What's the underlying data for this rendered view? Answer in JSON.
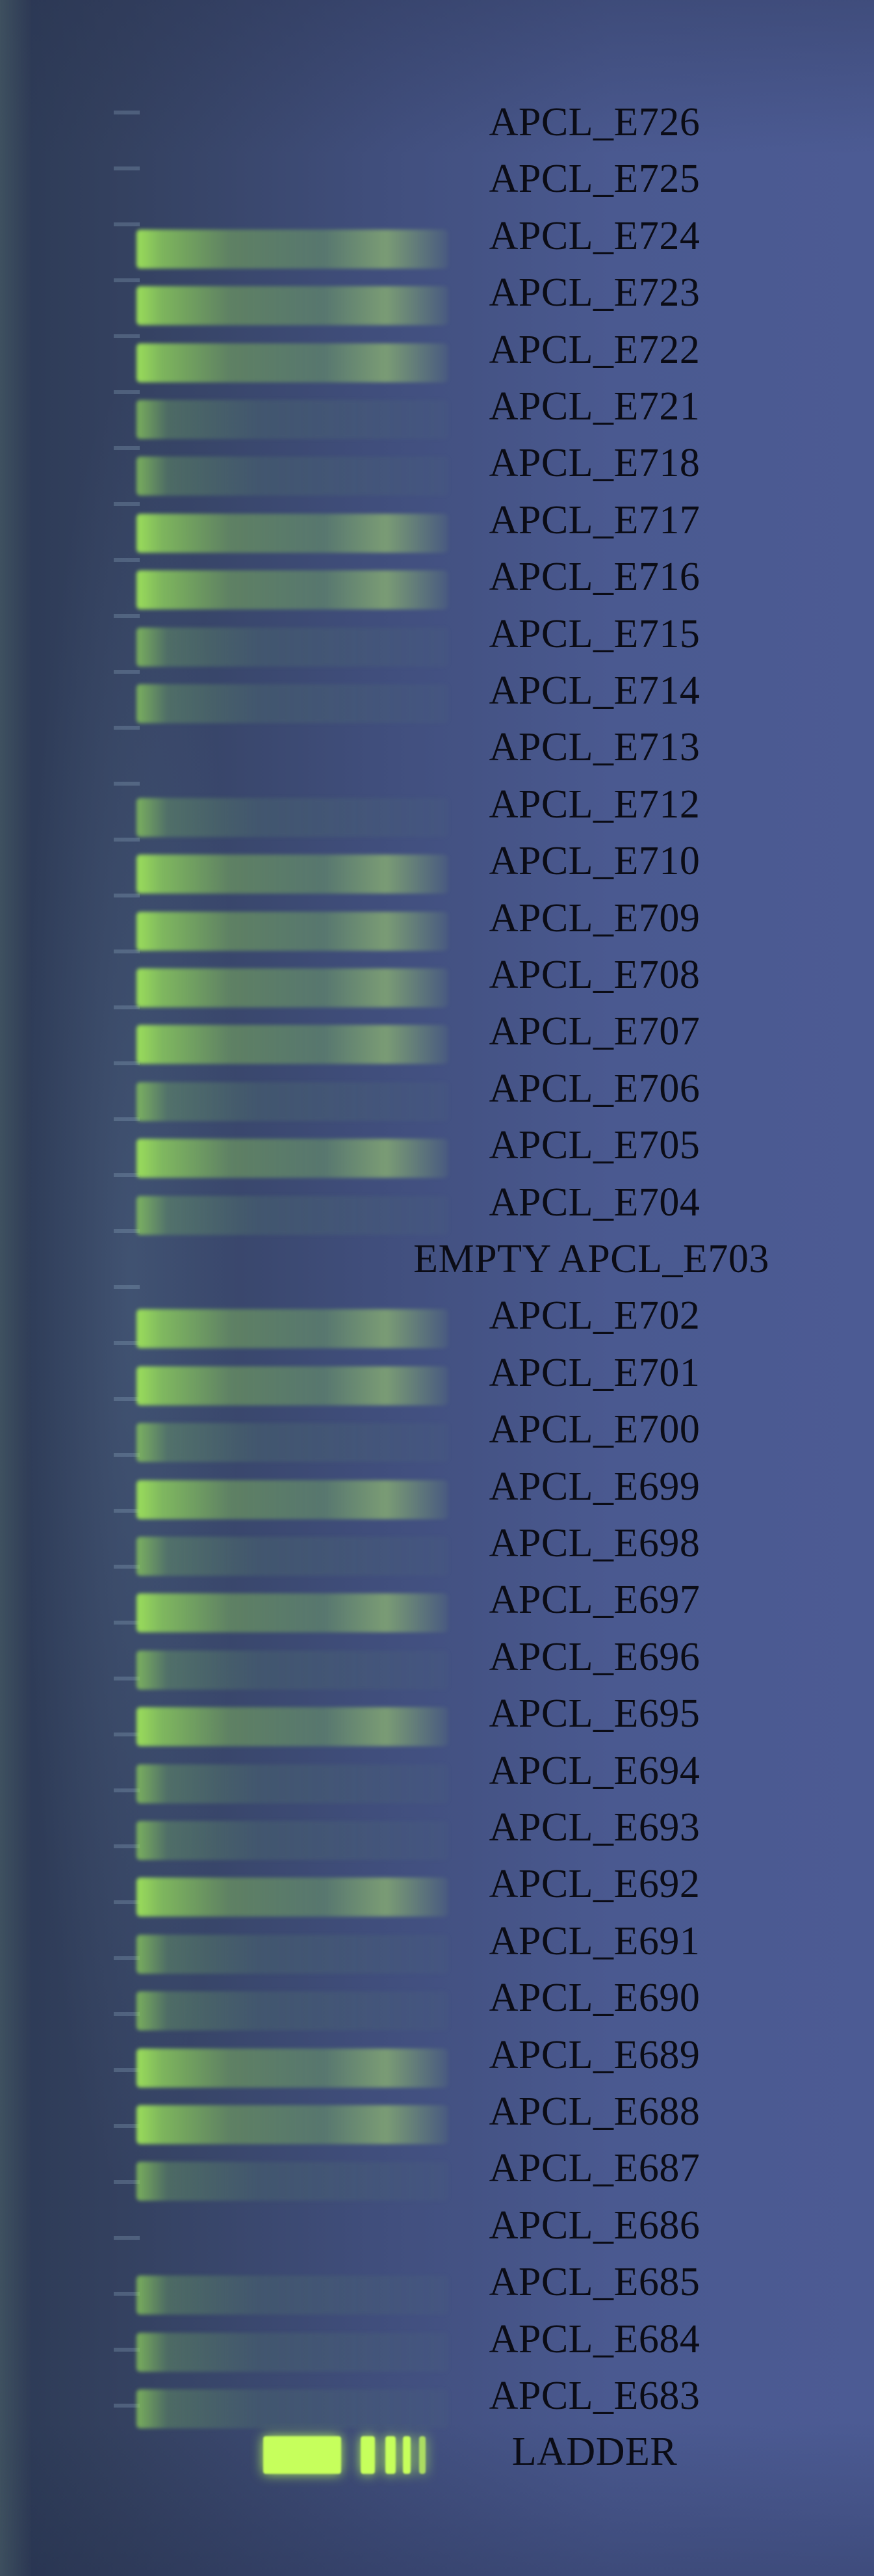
{
  "image": {
    "subject": "Gel",
    "background_color": "#414f7e",
    "band_color": "#b9f25a"
  },
  "lanes": [
    {
      "label": "APCL_E726",
      "band": "none"
    },
    {
      "label": "APCL_E725",
      "band": "none"
    },
    {
      "label": "APCL_E724",
      "band": "bright"
    },
    {
      "label": "APCL_E723",
      "band": "bright"
    },
    {
      "label": "APCL_E722",
      "band": "bright"
    },
    {
      "label": "APCL_E721",
      "band": "faint"
    },
    {
      "label": "APCL_E718",
      "band": "faint"
    },
    {
      "label": "APCL_E717",
      "band": "bright"
    },
    {
      "label": "APCL_E716",
      "band": "bright"
    },
    {
      "label": "APCL_E715",
      "band": "faint"
    },
    {
      "label": "APCL_E714",
      "band": "faint"
    },
    {
      "label": "APCL_E713",
      "band": "none"
    },
    {
      "label": "APCL_E712",
      "band": "faint"
    },
    {
      "label": "APCL_E710",
      "band": "bright"
    },
    {
      "label": "APCL_E709",
      "band": "bright"
    },
    {
      "label": "APCL_E708",
      "band": "bright"
    },
    {
      "label": "APCL_E707",
      "band": "bright"
    },
    {
      "label": "APCL_E706",
      "band": "faint"
    },
    {
      "label": "APCL_E705",
      "band": "bright"
    },
    {
      "label": "APCL_E704",
      "band": "faint"
    },
    {
      "label": "EMPTY APCL_E703",
      "band": "none"
    },
    {
      "label": "APCL_E702",
      "band": "bright"
    },
    {
      "label": "APCL_E701",
      "band": "bright"
    },
    {
      "label": "APCL_E700",
      "band": "faint"
    },
    {
      "label": "APCL_E699",
      "band": "bright"
    },
    {
      "label": "APCL_E698",
      "band": "faint"
    },
    {
      "label": "APCL_E697",
      "band": "bright"
    },
    {
      "label": "APCL_E696",
      "band": "faint"
    },
    {
      "label": "APCL_E695",
      "band": "bright"
    },
    {
      "label": "APCL_E694",
      "band": "faint"
    },
    {
      "label": "APCL_E693",
      "band": "faint"
    },
    {
      "label": "APCL_E692",
      "band": "bright"
    },
    {
      "label": "APCL_E691",
      "band": "faint"
    },
    {
      "label": "APCL_E690",
      "band": "faint"
    },
    {
      "label": "APCL_E689",
      "band": "bright"
    },
    {
      "label": "APCL_E688",
      "band": "bright"
    },
    {
      "label": "APCL_E687",
      "band": "faint"
    },
    {
      "label": "APCL_E686",
      "band": "none"
    },
    {
      "label": "APCL_E685",
      "band": "faint"
    },
    {
      "label": "APCL_E684",
      "band": "faint"
    },
    {
      "label": "APCL_E683",
      "band": "faint"
    }
  ],
  "ladder": {
    "label": "LADDER"
  }
}
